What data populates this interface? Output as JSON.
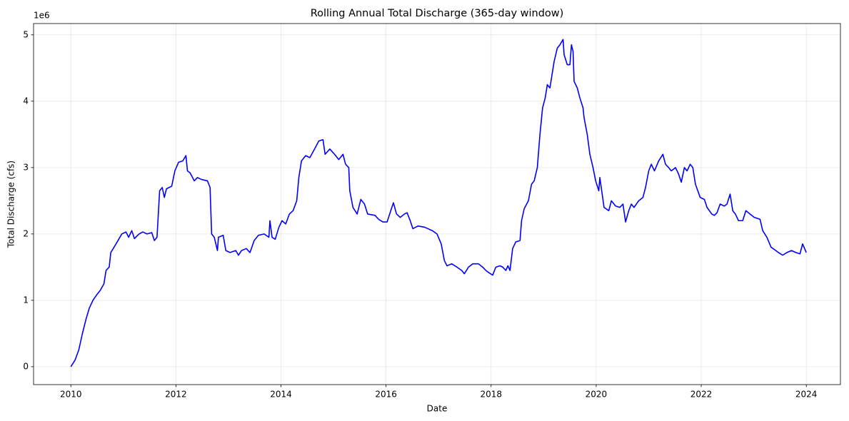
{
  "chart_data": {
    "type": "line",
    "title": "Rolling Annual Total Discharge (365-day window)",
    "xlabel": "Date",
    "ylabel": "Total Discharge (cfs)",
    "y_offset_label": "1e6",
    "xlim": [
      2009.29,
      2024.65
    ],
    "ylim": [
      -0.27,
      5.17
    ],
    "xticks": [
      2010,
      2012,
      2014,
      2016,
      2018,
      2020,
      2022,
      2024
    ],
    "yticks": [
      0,
      1,
      2,
      3,
      4,
      5
    ],
    "grid": true,
    "x": [
      2010.0,
      2010.08,
      2010.15,
      2010.22,
      2010.29,
      2010.35,
      2010.42,
      2010.49,
      2010.56,
      2010.63,
      2010.67,
      2010.73,
      2010.76,
      2010.86,
      2010.97,
      2011.05,
      2011.1,
      2011.16,
      2011.21,
      2011.3,
      2011.37,
      2011.45,
      2011.54,
      2011.59,
      2011.64,
      2011.69,
      2011.74,
      2011.78,
      2011.82,
      2011.92,
      2011.98,
      2012.05,
      2012.13,
      2012.19,
      2012.22,
      2012.27,
      2012.35,
      2012.41,
      2012.49,
      2012.6,
      2012.65,
      2012.68,
      2012.73,
      2012.79,
      2012.81,
      2012.9,
      2012.95,
      2013.03,
      2013.14,
      2013.19,
      2013.25,
      2013.34,
      2013.41,
      2013.49,
      2013.57,
      2013.68,
      2013.77,
      2013.79,
      2013.83,
      2013.89,
      2013.96,
      2014.02,
      2014.09,
      2014.16,
      2014.23,
      2014.3,
      2014.34,
      2014.39,
      2014.47,
      2014.55,
      2014.64,
      2014.72,
      2014.8,
      2014.84,
      2014.93,
      2015.02,
      2015.1,
      2015.18,
      2015.23,
      2015.29,
      2015.31,
      2015.37,
      2015.45,
      2015.52,
      2015.59,
      2015.65,
      2015.79,
      2015.86,
      2015.94,
      2016.02,
      2016.09,
      2016.14,
      2016.2,
      2016.27,
      2016.35,
      2016.4,
      2016.46,
      2016.51,
      2016.61,
      2016.74,
      2016.88,
      2016.97,
      2017.05,
      2017.11,
      2017.16,
      2017.25,
      2017.35,
      2017.44,
      2017.49,
      2017.57,
      2017.65,
      2017.76,
      2017.84,
      2017.9,
      2017.95,
      2018.03,
      2018.09,
      2018.17,
      2018.22,
      2018.28,
      2018.32,
      2018.36,
      2018.41,
      2018.47,
      2018.55,
      2018.58,
      2018.63,
      2018.71,
      2018.77,
      2018.82,
      2018.88,
      2018.93,
      2018.98,
      2019.03,
      2019.07,
      2019.12,
      2019.16,
      2019.2,
      2019.26,
      2019.31,
      2019.37,
      2019.39,
      2019.45,
      2019.5,
      2019.53,
      2019.56,
      2019.58,
      2019.64,
      2019.69,
      2019.75,
      2019.77,
      2019.83,
      2019.88,
      2019.94,
      2019.99,
      2020.05,
      2020.07,
      2020.15,
      2020.24,
      2020.29,
      2020.37,
      2020.45,
      2020.51,
      2020.56,
      2020.62,
      2020.67,
      2020.72,
      2020.81,
      2020.89,
      2020.94,
      2021.0,
      2021.05,
      2021.11,
      2021.19,
      2021.27,
      2021.32,
      2021.38,
      2021.43,
      2021.51,
      2021.57,
      2021.62,
      2021.68,
      2021.73,
      2021.79,
      2021.84,
      2021.89,
      2021.98,
      2022.06,
      2022.11,
      2022.2,
      2022.25,
      2022.3,
      2022.36,
      2022.44,
      2022.49,
      2022.55,
      2022.6,
      2022.65,
      2022.71,
      2022.79,
      2022.85,
      2022.93,
      2023.01,
      2023.12,
      2023.17,
      2023.25,
      2023.33,
      2023.42,
      2023.47,
      2023.55,
      2023.63,
      2023.72,
      2023.8,
      2023.88,
      2023.93,
      2024.0
    ],
    "series": [
      {
        "color": "#0000ff",
        "values": [
          0,
          0.1,
          0.25,
          0.5,
          0.72,
          0.88,
          1.0,
          1.08,
          1.15,
          1.25,
          1.45,
          1.5,
          1.72,
          1.85,
          2.0,
          2.03,
          1.95,
          2.05,
          1.93,
          2.0,
          2.03,
          2.0,
          2.02,
          1.9,
          1.95,
          2.65,
          2.7,
          2.55,
          2.68,
          2.72,
          2.95,
          3.08,
          3.1,
          3.18,
          2.95,
          2.92,
          2.8,
          2.85,
          2.82,
          2.8,
          2.7,
          2.0,
          1.95,
          1.75,
          1.95,
          1.98,
          1.75,
          1.72,
          1.75,
          1.68,
          1.75,
          1.78,
          1.72,
          1.9,
          1.98,
          2.0,
          1.95,
          2.2,
          1.95,
          1.92,
          2.1,
          2.2,
          2.15,
          2.3,
          2.35,
          2.5,
          2.85,
          3.1,
          3.18,
          3.15,
          3.28,
          3.4,
          3.42,
          3.2,
          3.28,
          3.2,
          3.12,
          3.2,
          3.05,
          3.0,
          2.65,
          2.4,
          2.3,
          2.52,
          2.45,
          2.3,
          2.28,
          2.22,
          2.18,
          2.18,
          2.35,
          2.47,
          2.3,
          2.25,
          2.3,
          2.32,
          2.2,
          2.08,
          2.12,
          2.1,
          2.05,
          2.0,
          1.85,
          1.6,
          1.52,
          1.55,
          1.5,
          1.45,
          1.4,
          1.5,
          1.55,
          1.55,
          1.5,
          1.45,
          1.42,
          1.38,
          1.5,
          1.52,
          1.5,
          1.45,
          1.52,
          1.45,
          1.78,
          1.88,
          1.9,
          2.2,
          2.38,
          2.5,
          2.75,
          2.8,
          3.0,
          3.5,
          3.9,
          4.05,
          4.25,
          4.2,
          4.4,
          4.6,
          4.8,
          4.85,
          4.93,
          4.7,
          4.55,
          4.55,
          4.85,
          4.75,
          4.3,
          4.2,
          4.05,
          3.9,
          3.75,
          3.5,
          3.2,
          3.0,
          2.8,
          2.65,
          2.85,
          2.4,
          2.35,
          2.5,
          2.42,
          2.4,
          2.45,
          2.18,
          2.35,
          2.45,
          2.4,
          2.5,
          2.55,
          2.7,
          2.95,
          3.05,
          2.95,
          3.1,
          3.2,
          3.05,
          3.0,
          2.95,
          3.0,
          2.9,
          2.78,
          3.0,
          2.95,
          3.05,
          3.0,
          2.75,
          2.55,
          2.52,
          2.4,
          2.3,
          2.28,
          2.32,
          2.45,
          2.42,
          2.45,
          2.6,
          2.35,
          2.3,
          2.2,
          2.2,
          2.35,
          2.3,
          2.25,
          2.22,
          2.05,
          1.95,
          1.8,
          1.75,
          1.72,
          1.68,
          1.72,
          1.75,
          1.72,
          1.7,
          1.85,
          1.72
        ]
      }
    ]
  }
}
